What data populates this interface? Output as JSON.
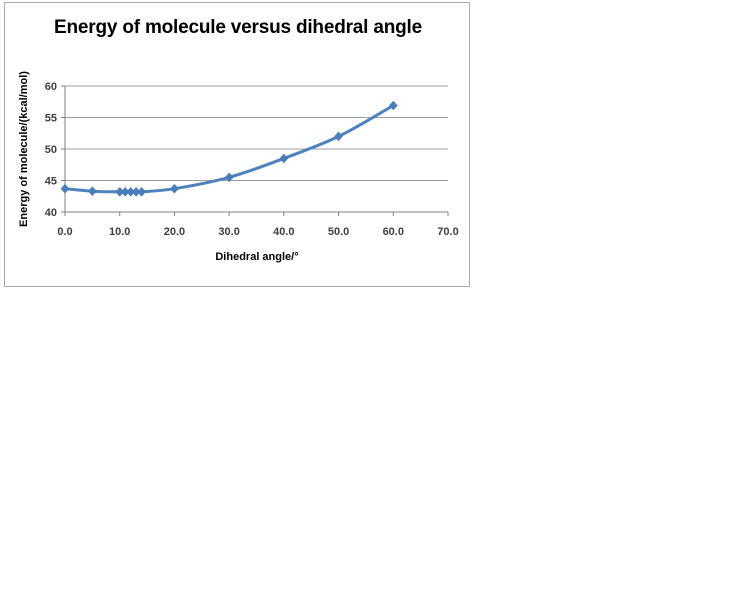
{
  "chart_data": {
    "type": "line",
    "title": "Energy of molecule versus dihedral angle",
    "xlabel": "Dihedral angle/°",
    "ylabel": "Energy of molecule/(kcal/mol)",
    "x": [
      0,
      5,
      10,
      11,
      12,
      13,
      14,
      20,
      30,
      40,
      50,
      60
    ],
    "y": [
      43.7,
      43.3,
      43.2,
      43.2,
      43.2,
      43.2,
      43.2,
      43.7,
      45.5,
      48.5,
      52.0,
      56.9
    ],
    "xlim": [
      0,
      70
    ],
    "ylim": [
      40,
      60
    ],
    "xtick_labels": [
      "0.0",
      "10.0",
      "20.0",
      "30.0",
      "40.0",
      "50.0",
      "60.0",
      "70.0"
    ],
    "xtick_values": [
      0,
      10,
      20,
      30,
      40,
      50,
      60,
      70
    ],
    "ytick_labels": [
      "40",
      "45",
      "50",
      "55",
      "60"
    ],
    "ytick_values": [
      40,
      45,
      50,
      55,
      60
    ],
    "grid": "horizontal",
    "legend": "none",
    "smooth": true,
    "marker": "diamond",
    "colors": {
      "line": "#4f81bd",
      "marker_fill": "#4a7ebb",
      "marker_stroke": "#3c6da8",
      "grid": "#9c9c9c",
      "axis": "#808080",
      "tick_label": "#3f3f3f",
      "frame_border": "#a9a9a9",
      "title": "#000000"
    }
  }
}
